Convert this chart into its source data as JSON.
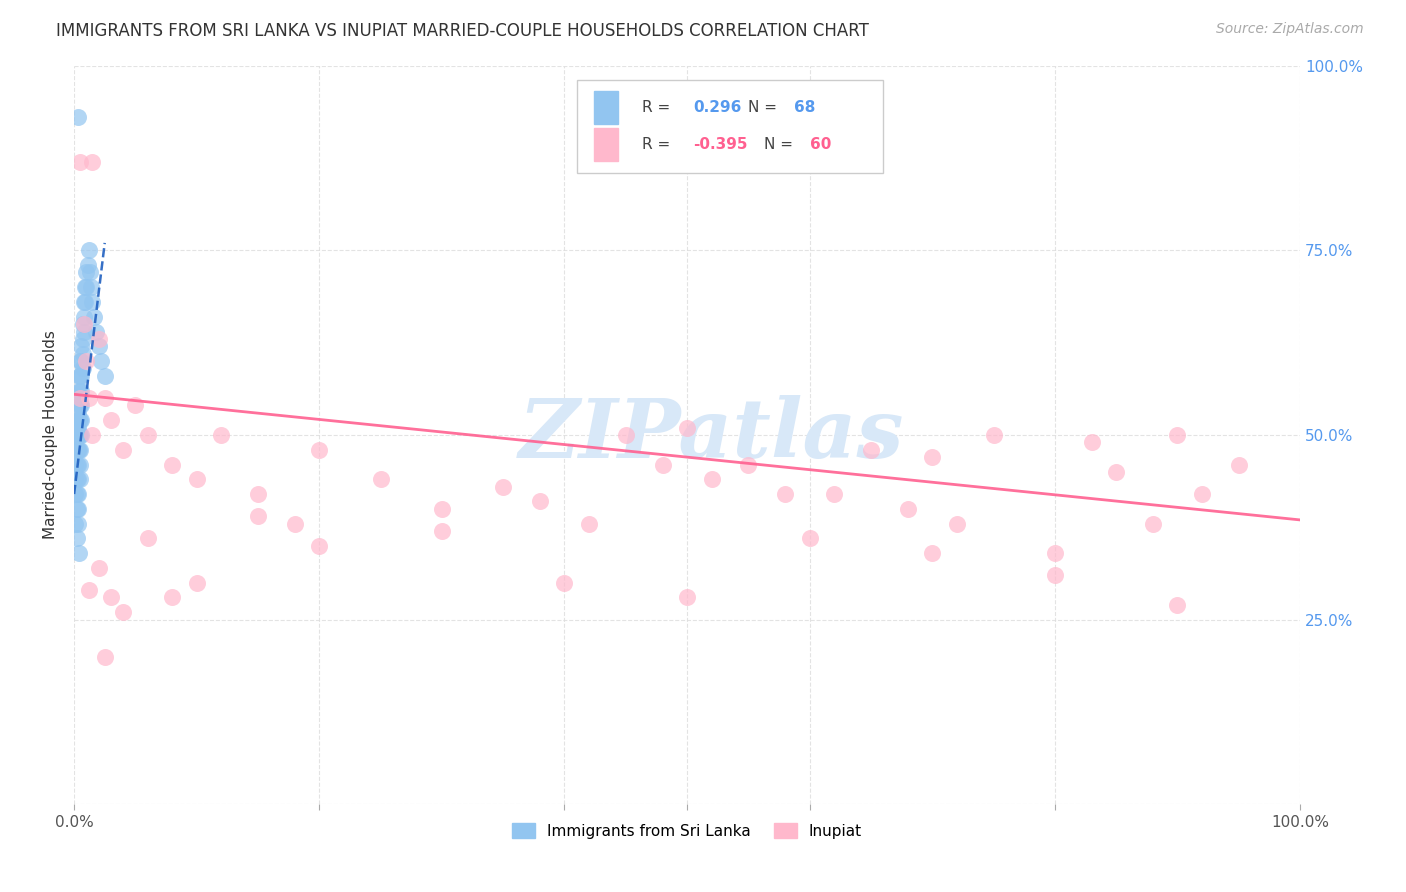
{
  "title": "IMMIGRANTS FROM SRI LANKA VS INUPIAT MARRIED-COUPLE HOUSEHOLDS CORRELATION CHART",
  "source": "Source: ZipAtlas.com",
  "ylabel": "Married-couple Households",
  "xlim": [
    0.0,
    1.0
  ],
  "ylim": [
    0.0,
    1.0
  ],
  "legend1_R": "0.296",
  "legend1_N": "68",
  "legend2_R": "-0.395",
  "legend2_N": "60",
  "blue_scatter_color": "#92C5F0",
  "blue_line_color": "#2060C0",
  "pink_scatter_color": "#FFB8CC",
  "pink_line_color": "#FF6090",
  "watermark_color": "#D8E8F8",
  "watermark_text": "ZIPatlas",
  "background_color": "#FFFFFF",
  "grid_color": "#DDDDDD",
  "ytick_color": "#5599EE",
  "text_color": "#333333",
  "sri_lanka_x": [
    0.001,
    0.001,
    0.001,
    0.001,
    0.001,
    0.002,
    0.002,
    0.002,
    0.002,
    0.002,
    0.002,
    0.002,
    0.002,
    0.003,
    0.003,
    0.003,
    0.003,
    0.003,
    0.003,
    0.003,
    0.003,
    0.003,
    0.003,
    0.004,
    0.004,
    0.004,
    0.004,
    0.004,
    0.004,
    0.005,
    0.005,
    0.005,
    0.005,
    0.005,
    0.005,
    0.005,
    0.005,
    0.005,
    0.006,
    0.006,
    0.006,
    0.006,
    0.006,
    0.006,
    0.006,
    0.007,
    0.007,
    0.007,
    0.007,
    0.008,
    0.008,
    0.008,
    0.009,
    0.009,
    0.01,
    0.01,
    0.011,
    0.012,
    0.013,
    0.014,
    0.015,
    0.016,
    0.018,
    0.02,
    0.022,
    0.025,
    0.004,
    0.003
  ],
  "sri_lanka_y": [
    0.48,
    0.46,
    0.44,
    0.42,
    0.38,
    0.52,
    0.5,
    0.48,
    0.46,
    0.44,
    0.42,
    0.4,
    0.36,
    0.55,
    0.53,
    0.51,
    0.5,
    0.48,
    0.46,
    0.44,
    0.42,
    0.4,
    0.38,
    0.58,
    0.56,
    0.54,
    0.52,
    0.5,
    0.48,
    0.6,
    0.58,
    0.56,
    0.54,
    0.52,
    0.5,
    0.48,
    0.46,
    0.44,
    0.62,
    0.6,
    0.58,
    0.56,
    0.54,
    0.52,
    0.5,
    0.65,
    0.63,
    0.61,
    0.59,
    0.68,
    0.66,
    0.64,
    0.7,
    0.68,
    0.72,
    0.7,
    0.73,
    0.75,
    0.72,
    0.7,
    0.68,
    0.66,
    0.64,
    0.62,
    0.6,
    0.58,
    0.34,
    0.93
  ],
  "inupiat_x": [
    0.005,
    0.008,
    0.01,
    0.012,
    0.015,
    0.02,
    0.025,
    0.03,
    0.04,
    0.05,
    0.06,
    0.08,
    0.1,
    0.12,
    0.15,
    0.18,
    0.2,
    0.25,
    0.3,
    0.35,
    0.38,
    0.42,
    0.45,
    0.48,
    0.5,
    0.52,
    0.55,
    0.58,
    0.62,
    0.65,
    0.68,
    0.7,
    0.72,
    0.75,
    0.8,
    0.83,
    0.85,
    0.88,
    0.9,
    0.92,
    0.95,
    0.012,
    0.02,
    0.03,
    0.04,
    0.06,
    0.08,
    0.1,
    0.15,
    0.2,
    0.3,
    0.4,
    0.5,
    0.6,
    0.7,
    0.8,
    0.9,
    0.005,
    0.015,
    0.025
  ],
  "inupiat_y": [
    0.55,
    0.65,
    0.6,
    0.55,
    0.5,
    0.63,
    0.55,
    0.52,
    0.48,
    0.54,
    0.5,
    0.46,
    0.44,
    0.5,
    0.42,
    0.38,
    0.48,
    0.44,
    0.4,
    0.43,
    0.41,
    0.38,
    0.5,
    0.46,
    0.51,
    0.44,
    0.46,
    0.42,
    0.42,
    0.48,
    0.4,
    0.47,
    0.38,
    0.5,
    0.34,
    0.49,
    0.45,
    0.38,
    0.5,
    0.42,
    0.46,
    0.29,
    0.32,
    0.28,
    0.26,
    0.36,
    0.28,
    0.3,
    0.39,
    0.35,
    0.37,
    0.3,
    0.28,
    0.36,
    0.34,
    0.31,
    0.27,
    0.87,
    0.87,
    0.2
  ],
  "sl_trend_x": [
    0.0,
    0.025
  ],
  "sl_trend_y": [
    0.42,
    0.76
  ],
  "in_trend_x": [
    0.0,
    1.0
  ],
  "in_trend_y": [
    0.555,
    0.385
  ]
}
